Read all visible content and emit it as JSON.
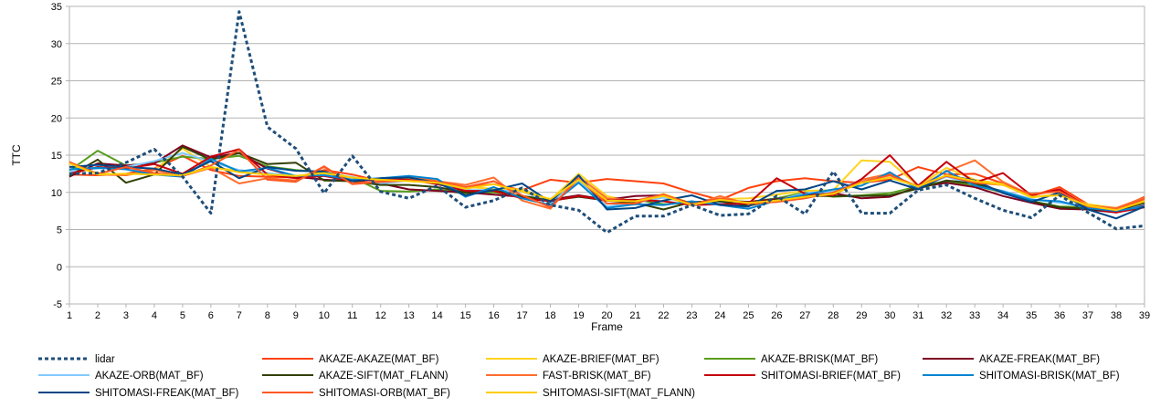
{
  "chart_data": {
    "type": "line",
    "xlabel": "Frame",
    "ylabel": "TTC",
    "xlim": [
      1,
      39
    ],
    "ylim": [
      -5,
      35
    ],
    "y_ticks": [
      -5,
      0,
      5,
      10,
      15,
      20,
      25,
      30,
      35
    ],
    "grid": "horizontal",
    "legend_position": "bottom",
    "x": [
      1,
      2,
      3,
      4,
      5,
      6,
      7,
      8,
      9,
      10,
      11,
      12,
      13,
      14,
      15,
      16,
      17,
      18,
      19,
      20,
      21,
      22,
      23,
      24,
      25,
      26,
      27,
      28,
      29,
      30,
      31,
      32,
      33,
      34,
      35,
      36,
      37,
      38,
      39
    ],
    "series": [
      {
        "name": "lidar",
        "color": "#1f4e79",
        "dash": "4,3",
        "width": 3,
        "values": [
          12.5,
          12.6,
          14.0,
          15.8,
          12.1,
          7.2,
          34.3,
          18.8,
          15.9,
          9.9,
          14.9,
          10.1,
          9.2,
          10.9,
          8.0,
          8.9,
          10.6,
          8.3,
          7.6,
          4.6,
          6.8,
          6.8,
          8.3,
          6.9,
          7.1,
          9.5,
          7.1,
          12.8,
          7.2,
          7.2,
          10.3,
          11.0,
          9.2,
          7.6,
          6.6,
          9.6,
          7.3,
          5.1,
          5.5
        ]
      },
      {
        "name": "AKAZE-AKAZE(MAT_BF)",
        "color": "#ff420e",
        "width": 2,
        "values": [
          12.4,
          12.3,
          12.5,
          13.2,
          14.9,
          13.0,
          12.2,
          12.1,
          12.0,
          13.0,
          12.4,
          11.5,
          12.0,
          11.5,
          10.7,
          11.1,
          10.3,
          11.7,
          11.3,
          11.8,
          11.5,
          11.2,
          10.0,
          9.0,
          10.6,
          11.5,
          11.9,
          11.5,
          11.3,
          11.7,
          13.4,
          12.4,
          12.5,
          11.2,
          9.5,
          10.7,
          8.4,
          7.7,
          9.4
        ]
      },
      {
        "name": "AKAZE-BRIEF(MAT_BF)",
        "color": "#ffd320",
        "width": 2,
        "values": [
          13.5,
          12.6,
          12.3,
          13.0,
          15.9,
          13.4,
          12.9,
          12.4,
          12.0,
          12.4,
          12.0,
          11.5,
          11.8,
          11.5,
          10.7,
          10.5,
          10.4,
          9.0,
          12.5,
          9.5,
          8.7,
          9.8,
          8.5,
          9.1,
          9.2,
          9.7,
          10.2,
          10.3,
          14.3,
          14.1,
          10.9,
          13.3,
          11.7,
          11.1,
          9.3,
          9.8,
          8.4,
          7.9,
          8.9
        ]
      },
      {
        "name": "AKAZE-BRISK(MAT_BF)",
        "color": "#579d1c",
        "width": 2,
        "values": [
          12.9,
          15.6,
          13.6,
          14.0,
          14.8,
          14.5,
          14.9,
          13.5,
          13.0,
          12.7,
          12.0,
          10.2,
          10.1,
          10.4,
          9.8,
          10.0,
          9.5,
          9.0,
          9.6,
          9.0,
          9.0,
          8.4,
          8.6,
          9.0,
          8.7,
          9.2,
          10.0,
          9.4,
          9.6,
          9.9,
          10.8,
          11.5,
          10.9,
          10.0,
          8.8,
          8.1,
          8.0,
          7.5,
          8.6
        ]
      },
      {
        "name": "AKAZE-FREAK(MAT_BF)",
        "color": "#7e0021",
        "width": 2,
        "values": [
          12.1,
          13.9,
          13.6,
          13.9,
          16.3,
          14.7,
          15.3,
          13.2,
          12.1,
          11.7,
          11.5,
          11.2,
          10.4,
          10.2,
          10.0,
          9.7,
          9.4,
          9.0,
          9.6,
          9.0,
          9.5,
          9.6,
          8.5,
          8.8,
          8.7,
          9.1,
          9.6,
          9.9,
          9.2,
          9.4,
          10.7,
          11.3,
          10.7,
          9.5,
          8.6,
          7.8,
          7.7,
          7.3,
          8.4
        ]
      },
      {
        "name": "AKAZE-ORB(MAT_BF)",
        "color": "#83caff",
        "width": 2,
        "values": [
          12.8,
          13.2,
          13.4,
          14.2,
          15.3,
          14.1,
          13.0,
          12.6,
          12.2,
          12.3,
          12.1,
          11.2,
          11.6,
          11.3,
          10.3,
          10.3,
          10.1,
          8.7,
          11.6,
          8.1,
          8.6,
          9.3,
          8.5,
          8.6,
          8.5,
          8.9,
          9.9,
          10.1,
          11.7,
          12.3,
          10.6,
          12.1,
          11.0,
          10.2,
          9.1,
          8.6,
          8.1,
          7.5,
          8.5
        ]
      },
      {
        "name": "AKAZE-SIFT(MAT_FLANN)",
        "color": "#314004",
        "width": 2,
        "values": [
          12.2,
          14.4,
          11.3,
          12.4,
          16.1,
          14.4,
          15.3,
          13.8,
          14.0,
          11.6,
          11.5,
          11.0,
          11.0,
          10.7,
          10.0,
          10.3,
          9.5,
          8.9,
          9.4,
          8.9,
          8.6,
          7.7,
          8.7,
          8.8,
          8.2,
          9.0,
          9.5,
          9.5,
          9.5,
          9.6,
          10.5,
          11.6,
          11.2,
          10.1,
          8.8,
          8.0,
          7.8,
          7.5,
          8.6
        ]
      },
      {
        "name": "FAST-BRISK(MAT_BF)",
        "color": "#ff6e2e",
        "width": 2,
        "values": [
          14.1,
          12.4,
          12.3,
          13.0,
          12.2,
          13.3,
          11.2,
          11.9,
          11.6,
          13.4,
          11.2,
          11.5,
          12.2,
          11.5,
          11.0,
          12.0,
          8.9,
          7.8,
          12.1,
          9.2,
          8.9,
          9.7,
          8.3,
          9.5,
          8.4,
          8.8,
          9.4,
          9.7,
          11.7,
          12.5,
          10.7,
          12.8,
          14.3,
          11.4,
          9.6,
          10.3,
          8.2,
          7.9,
          9.3
        ]
      },
      {
        "name": "SHITOMASI-BRIEF(MAT_BF)",
        "color": "#c5000b",
        "width": 2,
        "values": [
          12.5,
          13.4,
          13.2,
          13.8,
          12.5,
          14.8,
          15.8,
          12.4,
          11.9,
          12.2,
          11.5,
          11.8,
          11.7,
          11.1,
          10.2,
          10.2,
          9.2,
          8.8,
          9.5,
          8.9,
          9.0,
          8.8,
          8.3,
          8.4,
          8.5,
          11.9,
          9.8,
          9.6,
          11.8,
          15.0,
          10.9,
          14.1,
          11.3,
          12.6,
          9.6,
          10.4,
          8.0,
          7.3,
          8.0
        ]
      },
      {
        "name": "SHITOMASI-BRISK(MAT_BF)",
        "color": "#0084d1",
        "width": 2,
        "values": [
          13.1,
          13.3,
          13.1,
          12.4,
          12.1,
          14.5,
          12.8,
          13.3,
          12.2,
          12.3,
          11.7,
          11.9,
          12.2,
          11.8,
          9.4,
          10.7,
          9.2,
          8.3,
          11.3,
          7.9,
          8.4,
          8.3,
          8.8,
          8.3,
          7.8,
          8.9,
          9.7,
          10.4,
          10.9,
          12.7,
          10.4,
          12.9,
          10.9,
          10.1,
          9.0,
          8.8,
          7.9,
          7.5,
          8.1
        ]
      },
      {
        "name": "SHITOMASI-FREAK(MAT_BF)",
        "color": "#004586",
        "width": 2,
        "values": [
          13.4,
          13.7,
          13.4,
          13.2,
          12.4,
          14.2,
          11.9,
          13.4,
          12.9,
          12.8,
          11.5,
          11.9,
          12.0,
          11.3,
          9.6,
          10.3,
          11.2,
          8.7,
          12.3,
          7.7,
          7.9,
          8.9,
          9.6,
          8.3,
          8.1,
          10.2,
          10.4,
          11.5,
          10.4,
          11.6,
          10.4,
          12.3,
          11.6,
          9.9,
          8.7,
          10.0,
          7.7,
          6.5,
          8.1
        ]
      },
      {
        "name": "SHITOMASI-ORB(MAT_BF)",
        "color": "#ff5722",
        "width": 2,
        "values": [
          14.0,
          12.5,
          13.4,
          12.6,
          12.2,
          13.6,
          15.7,
          11.7,
          11.4,
          13.5,
          11.1,
          11.4,
          11.6,
          11.4,
          10.7,
          11.5,
          9.6,
          8.0,
          11.8,
          8.5,
          8.5,
          9.7,
          8.4,
          9.2,
          8.5,
          8.7,
          9.2,
          10.0,
          11.4,
          12.3,
          10.8,
          12.2,
          11.3,
          11.0,
          9.8,
          10.1,
          8.1,
          7.7,
          9.1
        ]
      },
      {
        "name": "SHITOMASI-SIFT(MAT_FLANN)",
        "color": "#ffcc00",
        "width": 2,
        "values": [
          13.9,
          12.4,
          12.5,
          12.4,
          12.3,
          13.4,
          12.7,
          12.4,
          12.2,
          12.6,
          12.0,
          11.7,
          11.5,
          11.3,
          10.5,
          11.1,
          10.1,
          9.1,
          11.7,
          8.9,
          8.8,
          9.5,
          8.3,
          9.0,
          8.6,
          8.9,
          9.4,
          9.8,
          11.3,
          12.0,
          10.8,
          12.3,
          11.5,
          11.0,
          9.4,
          9.6,
          8.2,
          7.6,
          8.8
        ]
      }
    ]
  }
}
